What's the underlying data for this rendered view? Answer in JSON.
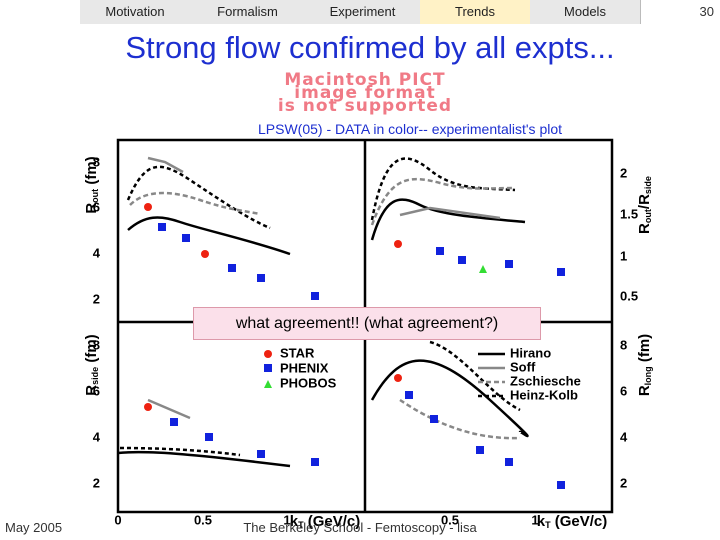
{
  "nav": [
    "Motivation",
    "Formalism",
    "Experiment",
    "Trends",
    "Models"
  ],
  "page_number": "30",
  "title": "Strong flow confirmed by all expts...",
  "pict": [
    "Macintosh PICT",
    "image format",
    "is not supported"
  ],
  "caption": "LPSW(05) - DATA in color-- experimentalist's plot",
  "plot": {
    "left_ticks_top": [
      "2",
      "4",
      "6",
      "8"
    ],
    "left_ticks_bottom": [
      "2",
      "4",
      "6",
      "8"
    ],
    "right_ticks_top": [
      "0.5",
      "1",
      "1.5",
      "2"
    ],
    "right_ticks_bottom": [
      "2",
      "4",
      "6",
      "8"
    ],
    "x_ticks": [
      "0",
      "0.5",
      "1",
      "0.5",
      "1"
    ],
    "ylabels": [
      {
        "symbol": "R",
        "sub": "out",
        "unit": " (fm)"
      },
      {
        "symbol": "R",
        "sub": "side",
        "unit": " (fm)"
      },
      {
        "symbol": "R",
        "sub": "out",
        "mid": "/R",
        "sub2": "side"
      },
      {
        "symbol": "R",
        "sub": "long",
        "unit": " (fm)"
      }
    ],
    "xlabel": {
      "symbol": "k",
      "sub": "T",
      "unit": " (GeV/c)"
    },
    "legend_data": [
      "STAR",
      "PHENIX",
      "PHOBOS"
    ],
    "legend_models": [
      "Hirano",
      "Soff",
      "Zschiesche",
      "Heinz-Kolb"
    ]
  },
  "callout": "what agreement!!  (what agreement?)",
  "date": "May 2005",
  "footer": "The Berkeley School - Femtoscopy - lisa"
}
